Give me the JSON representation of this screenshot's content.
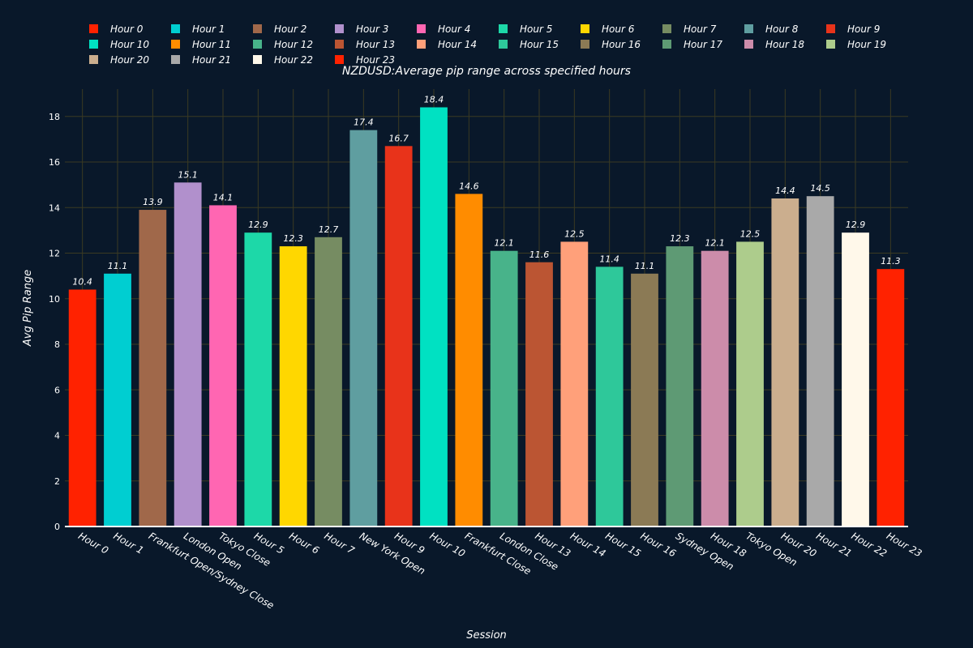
{
  "chart_data": {
    "type": "bar",
    "title": "NZDUSD:Average pip range across specified hours",
    "xlabel": "Session",
    "ylabel": "Avg Pip Range",
    "ylim": [
      0,
      19.2
    ],
    "yticks": [
      0,
      2,
      4,
      6,
      8,
      10,
      12,
      14,
      16,
      18
    ],
    "grid": true,
    "legend_position": "top",
    "categories": [
      "Hour 0",
      "Hour 1",
      "Frankfurt Open/Sydney Close",
      "London Open",
      "Tokyo Close",
      "Hour 5",
      "Hour 6",
      "Hour 7",
      "New York Open",
      "Hour 9",
      "Hour 10",
      "Frankfurt Close",
      "London Close",
      "Hour 13",
      "Hour 14",
      "Hour 15",
      "Hour 16",
      "Sydney Open",
      "Hour 18",
      "Tokyo Open",
      "Hour 20",
      "Hour 21",
      "Hour 22",
      "Hour 23"
    ],
    "values": [
      10.4,
      11.1,
      13.9,
      15.1,
      14.1,
      12.9,
      12.3,
      12.7,
      17.4,
      16.7,
      18.4,
      14.6,
      12.1,
      11.6,
      12.5,
      11.4,
      11.1,
      12.3,
      12.1,
      12.5,
      14.4,
      14.5,
      12.9,
      11.3
    ],
    "data_labels": [
      "10.4",
      "11.1",
      "13.9",
      "15.1",
      "14.1",
      "12.9",
      "12.3",
      "12.7",
      "17.4",
      "16.7",
      "18.4",
      "14.6",
      "12.1",
      "11.6",
      "12.5",
      "11.4",
      "11.1",
      "12.3",
      "12.1",
      "12.5",
      "14.4",
      "14.5",
      "12.9",
      "11.3"
    ],
    "series_names": [
      "Hour 0",
      "Hour 1",
      "Hour 2",
      "Hour 3",
      "Hour 4",
      "Hour 5",
      "Hour 6",
      "Hour 7",
      "Hour 8",
      "Hour 9",
      "Hour 10",
      "Hour 11",
      "Hour 12",
      "Hour 13",
      "Hour 14",
      "Hour 15",
      "Hour 16",
      "Hour 17",
      "Hour 18",
      "Hour 19",
      "Hour 20",
      "Hour 21",
      "Hour 22",
      "Hour 23"
    ],
    "colors": [
      "#ff2200",
      "#00ced1",
      "#a0684a",
      "#b190cc",
      "#ff66b2",
      "#1dd8a8",
      "#ffd700",
      "#768c62",
      "#5f9ea0",
      "#e8331a",
      "#00e1c2",
      "#ff8c00",
      "#48b38a",
      "#bb5533",
      "#ffa07a",
      "#2ec89a",
      "#8b7a55",
      "#5e9a74",
      "#cc8caa",
      "#adcc8c",
      "#cbae8e",
      "#a9a9a9",
      "#fff8ea",
      "#ff2200"
    ]
  }
}
